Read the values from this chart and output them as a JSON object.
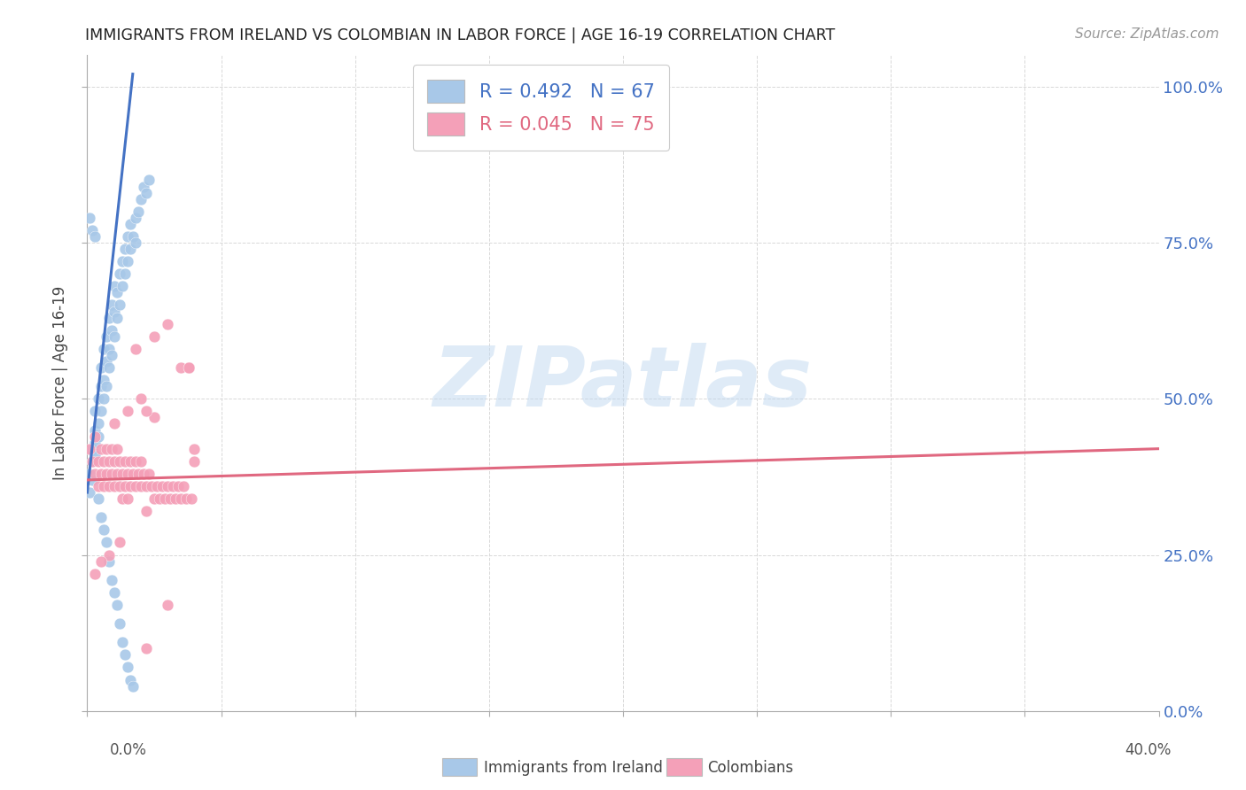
{
  "title": "IMMIGRANTS FROM IRELAND VS COLOMBIAN IN LABOR FORCE | AGE 16-19 CORRELATION CHART",
  "source": "Source: ZipAtlas.com",
  "ylabel": "In Labor Force | Age 16-19",
  "ireland_color": "#a8c8e8",
  "ireland_line_color": "#4472c4",
  "colombian_color": "#f4a0b8",
  "colombian_line_color": "#e06880",
  "watermark_text": "ZIPatlas",
  "ireland_R": 0.492,
  "ireland_N": 67,
  "colombian_R": 0.045,
  "colombian_N": 75,
  "xlim": [
    0.0,
    0.4
  ],
  "ylim": [
    0.0,
    1.05
  ],
  "ytick_vals": [
    0.0,
    0.25,
    0.5,
    0.75,
    1.0
  ],
  "ytick_labels_right": [
    "0.0%",
    "25.0%",
    "50.0%",
    "75.0%",
    "100.0%"
  ],
  "legend_r1_text": "R = 0.492   N = 67",
  "legend_r2_text": "R = 0.045   N = 75",
  "legend_color_r1": "#4472c4",
  "legend_color_r2": "#e06880",
  "bottom_legend_ireland": "Immigrants from Ireland",
  "bottom_legend_colombian": "Colombians",
  "ireland_x": [
    0.001,
    0.001,
    0.002,
    0.002,
    0.002,
    0.003,
    0.003,
    0.003,
    0.003,
    0.004,
    0.004,
    0.004,
    0.005,
    0.005,
    0.005,
    0.006,
    0.006,
    0.006,
    0.007,
    0.007,
    0.007,
    0.008,
    0.008,
    0.008,
    0.009,
    0.009,
    0.009,
    0.01,
    0.01,
    0.01,
    0.011,
    0.011,
    0.012,
    0.012,
    0.013,
    0.013,
    0.014,
    0.014,
    0.015,
    0.015,
    0.016,
    0.016,
    0.017,
    0.018,
    0.018,
    0.019,
    0.02,
    0.021,
    0.022,
    0.023,
    0.001,
    0.002,
    0.003,
    0.004,
    0.005,
    0.006,
    0.007,
    0.008,
    0.009,
    0.01,
    0.011,
    0.012,
    0.013,
    0.014,
    0.015,
    0.016,
    0.017
  ],
  "ireland_y": [
    0.38,
    0.35,
    0.4,
    0.42,
    0.37,
    0.45,
    0.43,
    0.41,
    0.48,
    0.46,
    0.5,
    0.44,
    0.52,
    0.48,
    0.55,
    0.5,
    0.53,
    0.58,
    0.52,
    0.56,
    0.6,
    0.55,
    0.58,
    0.63,
    0.57,
    0.61,
    0.65,
    0.6,
    0.64,
    0.68,
    0.63,
    0.67,
    0.65,
    0.7,
    0.68,
    0.72,
    0.7,
    0.74,
    0.72,
    0.76,
    0.74,
    0.78,
    0.76,
    0.79,
    0.75,
    0.8,
    0.82,
    0.84,
    0.83,
    0.85,
    0.79,
    0.77,
    0.76,
    0.34,
    0.31,
    0.29,
    0.27,
    0.24,
    0.21,
    0.19,
    0.17,
    0.14,
    0.11,
    0.09,
    0.07,
    0.05,
    0.04
  ],
  "colombian_x": [
    0.001,
    0.002,
    0.003,
    0.003,
    0.004,
    0.004,
    0.005,
    0.005,
    0.006,
    0.006,
    0.007,
    0.007,
    0.008,
    0.008,
    0.009,
    0.009,
    0.01,
    0.01,
    0.011,
    0.011,
    0.012,
    0.012,
    0.013,
    0.013,
    0.014,
    0.014,
    0.015,
    0.015,
    0.016,
    0.016,
    0.017,
    0.018,
    0.018,
    0.019,
    0.02,
    0.02,
    0.021,
    0.022,
    0.022,
    0.023,
    0.024,
    0.025,
    0.026,
    0.027,
    0.028,
    0.029,
    0.03,
    0.031,
    0.032,
    0.033,
    0.034,
    0.035,
    0.036,
    0.037,
    0.038,
    0.039,
    0.04,
    0.018,
    0.025,
    0.03,
    0.035,
    0.038,
    0.022,
    0.01,
    0.015,
    0.02,
    0.025,
    0.03,
    0.012,
    0.008,
    0.005,
    0.003,
    0.04,
    0.038,
    0.022
  ],
  "colombian_y": [
    0.42,
    0.4,
    0.38,
    0.44,
    0.36,
    0.4,
    0.38,
    0.42,
    0.36,
    0.4,
    0.38,
    0.42,
    0.36,
    0.4,
    0.38,
    0.42,
    0.36,
    0.4,
    0.38,
    0.42,
    0.36,
    0.4,
    0.38,
    0.34,
    0.36,
    0.4,
    0.38,
    0.34,
    0.36,
    0.4,
    0.38,
    0.36,
    0.4,
    0.38,
    0.36,
    0.4,
    0.38,
    0.36,
    0.32,
    0.38,
    0.36,
    0.34,
    0.36,
    0.34,
    0.36,
    0.34,
    0.36,
    0.34,
    0.36,
    0.34,
    0.36,
    0.34,
    0.36,
    0.34,
    0.55,
    0.34,
    0.4,
    0.58,
    0.6,
    0.62,
    0.55,
    0.55,
    0.1,
    0.46,
    0.48,
    0.5,
    0.47,
    0.17,
    0.27,
    0.25,
    0.24,
    0.22,
    0.42,
    0.55,
    0.48
  ]
}
